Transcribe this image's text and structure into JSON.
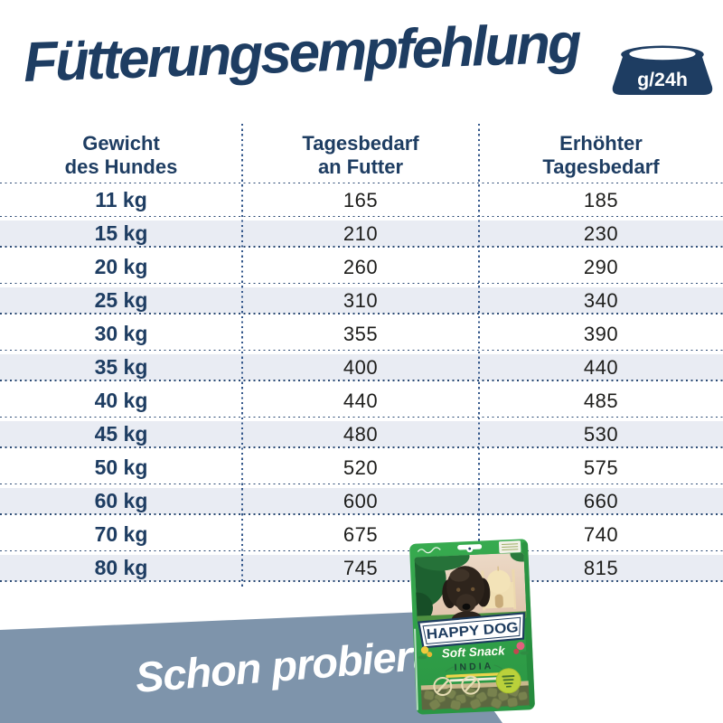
{
  "title": "Fütterungsempfehlung",
  "unit_badge": "g/24h",
  "table": {
    "headers": [
      {
        "line1": "Gewicht",
        "line2": "des Hundes"
      },
      {
        "line1": "Tagesbedarf",
        "line2": "an Futter"
      },
      {
        "line1": "Erhöhter",
        "line2": "Tagesbedarf"
      }
    ],
    "rows": [
      {
        "weight": "11 kg",
        "daily": "165",
        "increased": "185"
      },
      {
        "weight": "15 kg",
        "daily": "210",
        "increased": "230"
      },
      {
        "weight": "20 kg",
        "daily": "260",
        "increased": "290"
      },
      {
        "weight": "25 kg",
        "daily": "310",
        "increased": "340"
      },
      {
        "weight": "30 kg",
        "daily": "355",
        "increased": "390"
      },
      {
        "weight": "35 kg",
        "daily": "400",
        "increased": "440"
      },
      {
        "weight": "40 kg",
        "daily": "440",
        "increased": "485"
      },
      {
        "weight": "45 kg",
        "daily": "480",
        "increased": "530"
      },
      {
        "weight": "50 kg",
        "daily": "520",
        "increased": "575"
      },
      {
        "weight": "60 kg",
        "daily": "600",
        "increased": "660"
      },
      {
        "weight": "70 kg",
        "daily": "675",
        "increased": "740"
      },
      {
        "weight": "80 kg",
        "daily": "745",
        "increased": "815"
      }
    ]
  },
  "footer": {
    "question": "Schon probiert?"
  },
  "product": {
    "brand": "HAPPY DOG",
    "line": "Soft Snack",
    "variety": "INDIA"
  },
  "colors": {
    "navy": "#1e3d62",
    "row_alt": "#e9ecf3",
    "dotted_line": "#2c4b75",
    "banner_blue": "#7e94ab",
    "value_text": "#1d1d1b",
    "package_green": "#2fa048",
    "badge_lime": "#bad13b"
  },
  "chart_data": {
    "type": "table",
    "title": "Fütterungsempfehlung",
    "unit": "g/24h",
    "columns": [
      "Gewicht des Hundes",
      "Tagesbedarf an Futter",
      "Erhöhter Tagesbedarf"
    ],
    "rows": [
      [
        "11 kg",
        165,
        185
      ],
      [
        "15 kg",
        210,
        230
      ],
      [
        "20 kg",
        260,
        290
      ],
      [
        "25 kg",
        310,
        340
      ],
      [
        "30 kg",
        355,
        390
      ],
      [
        "35 kg",
        400,
        440
      ],
      [
        "40 kg",
        440,
        485
      ],
      [
        "45 kg",
        480,
        530
      ],
      [
        "50 kg",
        520,
        575
      ],
      [
        "60 kg",
        600,
        660
      ],
      [
        "70 kg",
        675,
        740
      ],
      [
        "80 kg",
        745,
        815
      ]
    ]
  }
}
